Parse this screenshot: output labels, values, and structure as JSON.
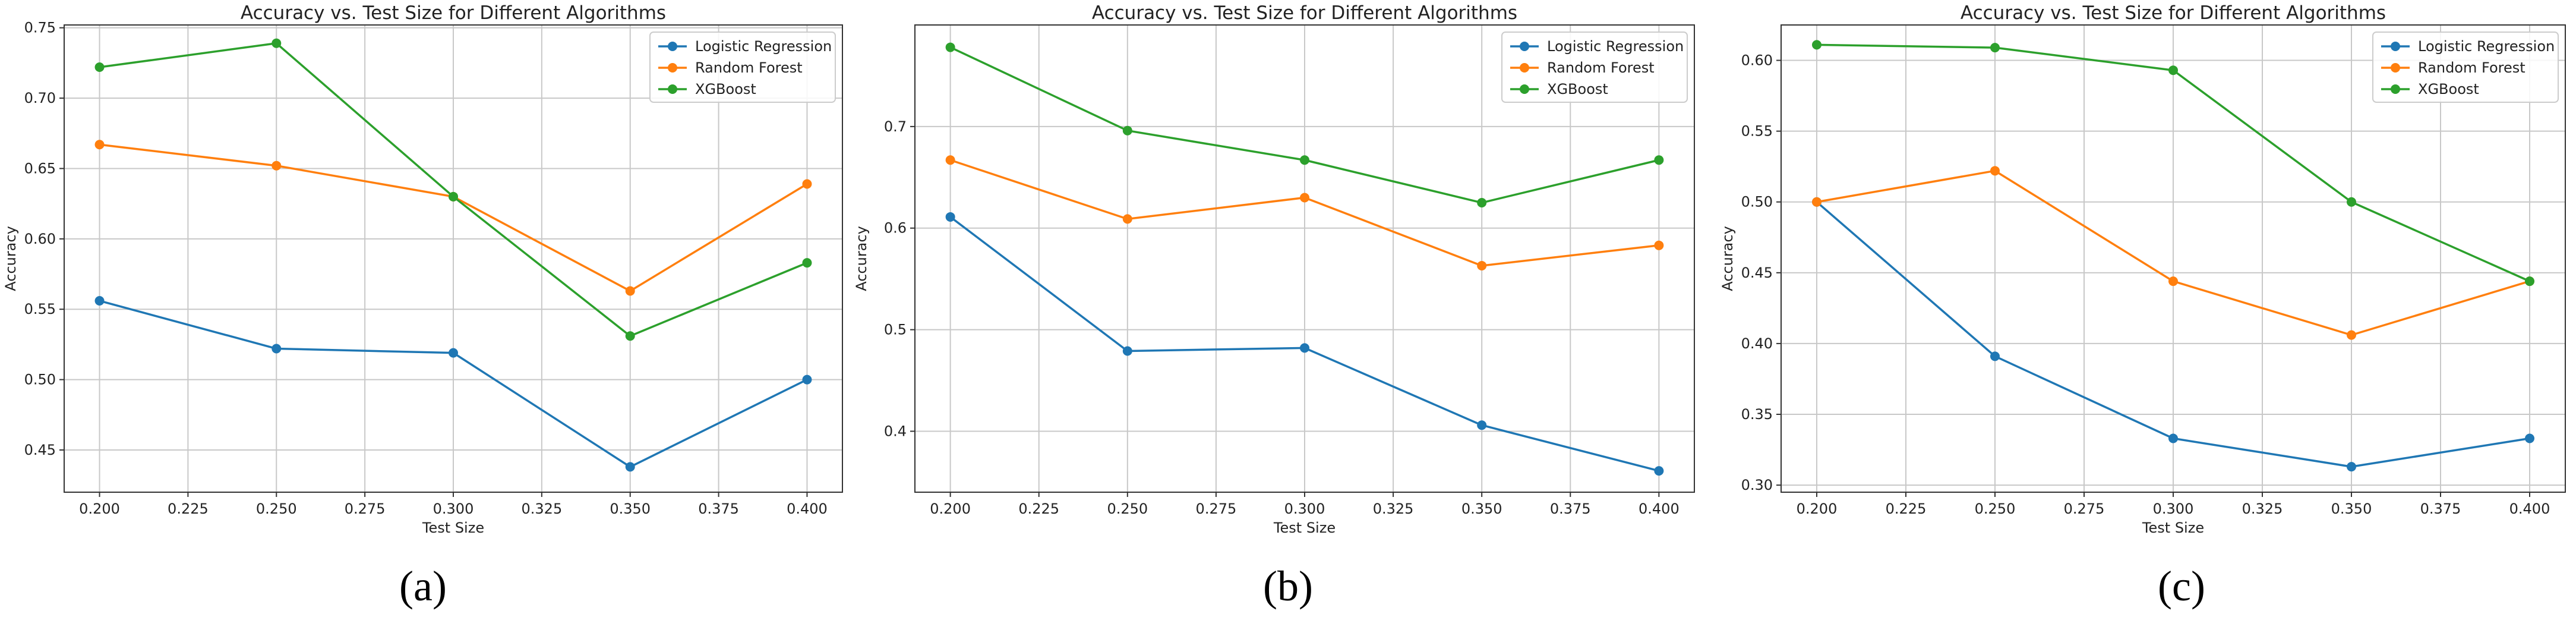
{
  "colors": {
    "Logistic Regression": "#1f77b4",
    "Random Forest": "#ff7f0e",
    "XGBoost": "#2ca02c"
  },
  "chart_data": [
    {
      "panel": "a",
      "caption": "(a)",
      "type": "line",
      "title": "Accuracy vs. Test Size for Different Algorithms",
      "xlabel": "Test Size",
      "ylabel": "Accuracy",
      "xlim": [
        0.19,
        0.41
      ],
      "ylim": [
        0.42,
        0.752
      ],
      "xticks": [
        0.2,
        0.225,
        0.25,
        0.275,
        0.3,
        0.325,
        0.35,
        0.375,
        0.4
      ],
      "xtick_labels": [
        "0.200",
        "0.225",
        "0.250",
        "0.275",
        "0.300",
        "0.325",
        "0.350",
        "0.375",
        "0.400"
      ],
      "yticks": [
        0.45,
        0.5,
        0.55,
        0.6,
        0.65,
        0.7,
        0.75
      ],
      "ytick_labels": [
        "0.45",
        "0.50",
        "0.55",
        "0.60",
        "0.65",
        "0.70",
        "0.75"
      ],
      "grid": true,
      "legend": "top-right",
      "x": [
        0.2,
        0.25,
        0.3,
        0.35,
        0.4
      ],
      "series": [
        {
          "name": "Logistic Regression",
          "values": [
            0.556,
            0.522,
            0.519,
            0.438,
            0.5
          ]
        },
        {
          "name": "Random Forest",
          "values": [
            0.667,
            0.652,
            0.63,
            0.563,
            0.639
          ]
        },
        {
          "name": "XGBoost",
          "values": [
            0.722,
            0.739,
            0.63,
            0.531,
            0.583
          ]
        }
      ]
    },
    {
      "panel": "b",
      "caption": "(b)",
      "type": "line",
      "title": "Accuracy vs. Test Size for Different Algorithms",
      "xlabel": "Test Size",
      "ylabel": "Accuracy",
      "xlim": [
        0.19,
        0.41
      ],
      "ylim": [
        0.34,
        0.8
      ],
      "xticks": [
        0.2,
        0.225,
        0.25,
        0.275,
        0.3,
        0.325,
        0.35,
        0.375,
        0.4
      ],
      "xtick_labels": [
        "0.200",
        "0.225",
        "0.250",
        "0.275",
        "0.300",
        "0.325",
        "0.350",
        "0.375",
        "0.400"
      ],
      "yticks": [
        0.4,
        0.5,
        0.6,
        0.7
      ],
      "ytick_labels": [
        "0.4",
        "0.5",
        "0.6",
        "0.7"
      ],
      "grid": true,
      "legend": "top-right",
      "x": [
        0.2,
        0.25,
        0.3,
        0.35,
        0.4
      ],
      "series": [
        {
          "name": "Logistic Regression",
          "values": [
            0.611,
            0.479,
            0.482,
            0.406,
            0.361
          ]
        },
        {
          "name": "Random Forest",
          "values": [
            0.667,
            0.609,
            0.63,
            0.563,
            0.583
          ]
        },
        {
          "name": "XGBoost",
          "values": [
            0.778,
            0.696,
            0.667,
            0.625,
            0.667
          ]
        }
      ]
    },
    {
      "panel": "c",
      "caption": "(c)",
      "type": "line",
      "title": "Accuracy vs. Test Size for Different Algorithms",
      "xlabel": "Test Size",
      "ylabel": "Accuracy",
      "xlim": [
        0.19,
        0.41
      ],
      "ylim": [
        0.295,
        0.625
      ],
      "xticks": [
        0.2,
        0.225,
        0.25,
        0.275,
        0.3,
        0.325,
        0.35,
        0.375,
        0.4
      ],
      "xtick_labels": [
        "0.200",
        "0.225",
        "0.250",
        "0.275",
        "0.300",
        "0.325",
        "0.350",
        "0.375",
        "0.400"
      ],
      "yticks": [
        0.3,
        0.35,
        0.4,
        0.45,
        0.5,
        0.55,
        0.6
      ],
      "ytick_labels": [
        "0.30",
        "0.35",
        "0.40",
        "0.45",
        "0.50",
        "0.55",
        "0.60"
      ],
      "grid": true,
      "legend": "top-right",
      "x": [
        0.2,
        0.25,
        0.3,
        0.35,
        0.4
      ],
      "series": [
        {
          "name": "Logistic Regression",
          "values": [
            0.5,
            0.391,
            0.333,
            0.313,
            0.333
          ]
        },
        {
          "name": "Random Forest",
          "values": [
            0.5,
            0.522,
            0.444,
            0.406,
            0.444
          ]
        },
        {
          "name": "XGBoost",
          "values": [
            0.611,
            0.609,
            0.593,
            0.5,
            0.444
          ]
        }
      ]
    }
  ]
}
